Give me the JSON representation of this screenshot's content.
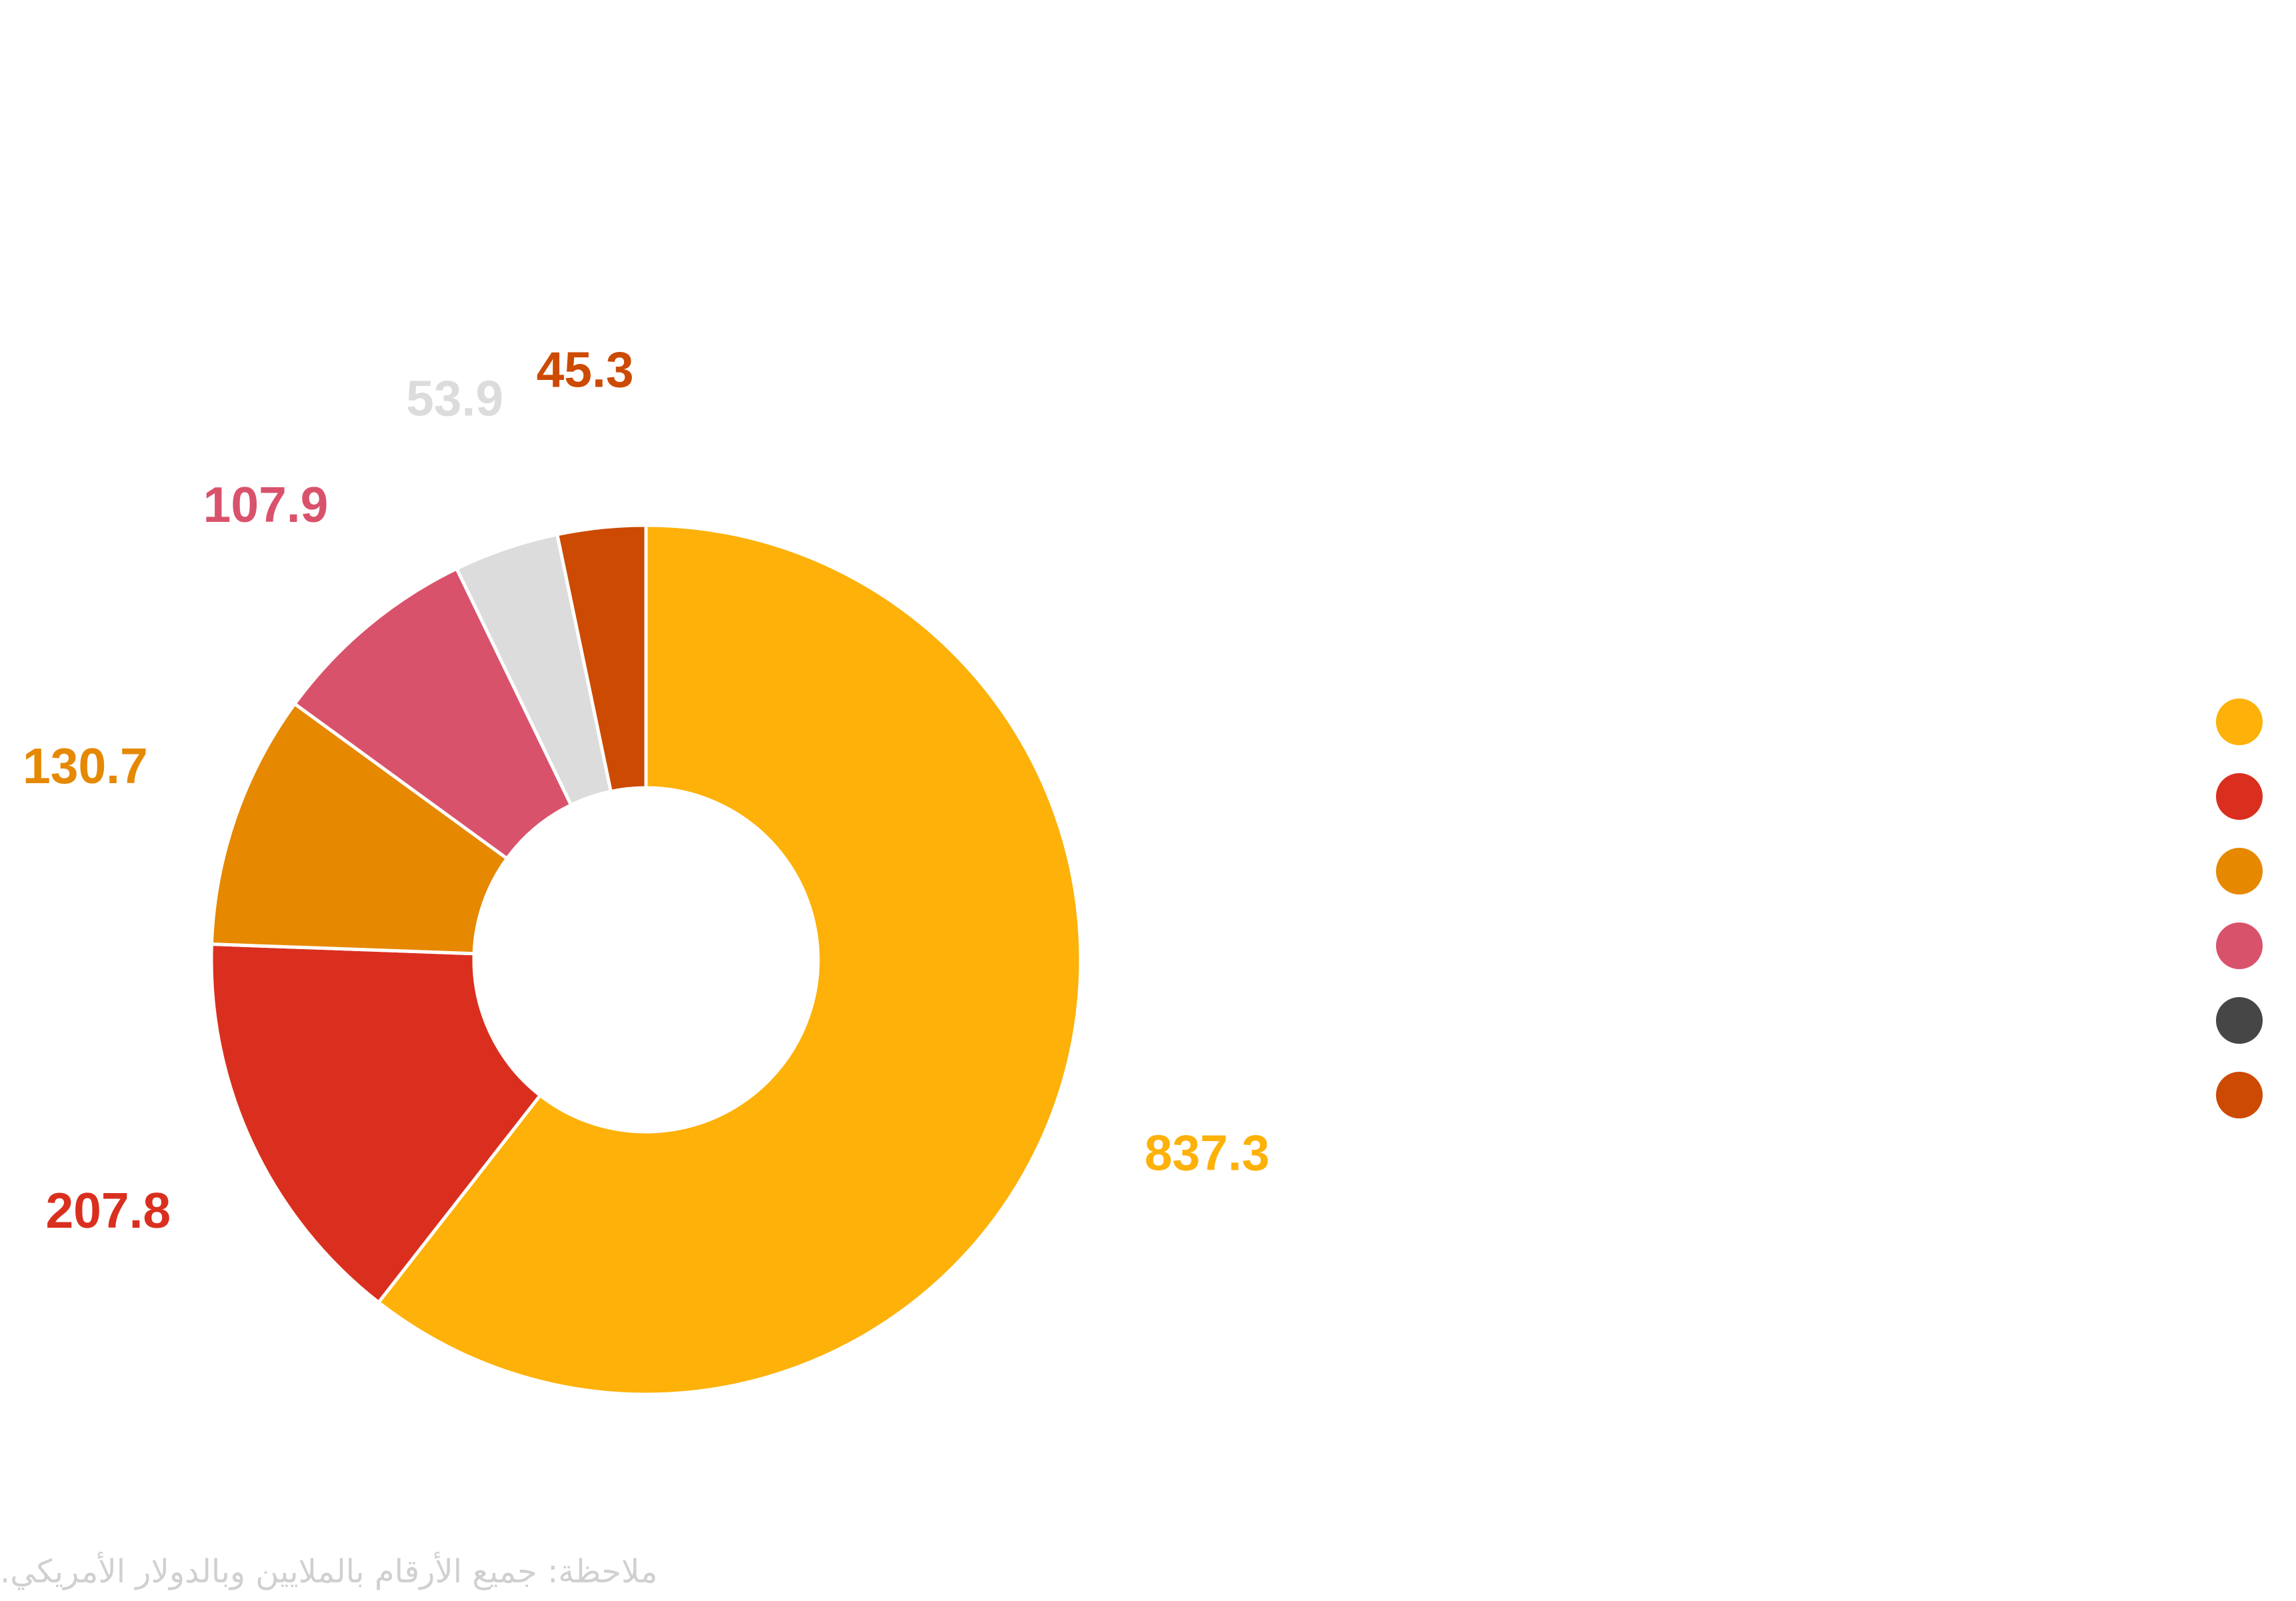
{
  "chart_data": {
    "type": "pie",
    "donut": true,
    "slices": [
      {
        "value": 837.3,
        "label": "837.3",
        "color": "#fdb109"
      },
      {
        "value": 207.8,
        "label": "207.8",
        "color": "#da2f1e"
      },
      {
        "value": 130.7,
        "label": "130.7",
        "color": "#e68800"
      },
      {
        "value": 107.9,
        "label": "107.9",
        "color": "#d9526b"
      },
      {
        "value": 53.9,
        "label": "53.9",
        "color": "#dcdcdc"
      },
      {
        "value": 45.3,
        "label": "45.3",
        "color": "#cc4a02"
      }
    ],
    "legend_position": "right",
    "legend_colors": [
      "#fdb109",
      "#da2f1e",
      "#e68800",
      "#d9526b",
      "#464646",
      "#cc4a02"
    ]
  },
  "note": "ملاحظة: جميع الأرقام بالملايين وبالدولار الأمريكي."
}
